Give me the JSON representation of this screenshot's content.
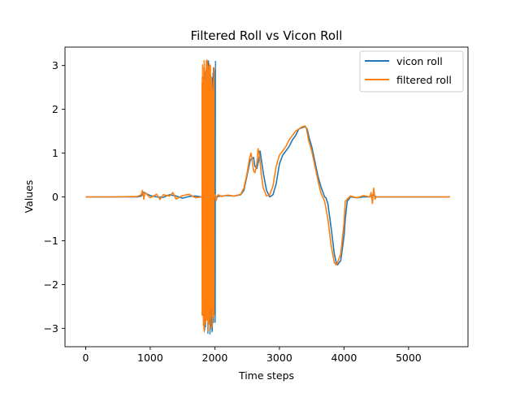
{
  "chart_data": {
    "type": "line",
    "title": "Filtered Roll vs Vicon Roll",
    "xlabel": "Time steps",
    "ylabel": "Values",
    "xlim": [
      -320,
      5920
    ],
    "ylim": [
      -3.42,
      3.42
    ],
    "xticks": [
      0,
      1000,
      2000,
      3000,
      4000,
      5000
    ],
    "yticks": [
      -3,
      -2,
      -1,
      0,
      1,
      2,
      3
    ],
    "xtick_labels": [
      "0",
      "1000",
      "2000",
      "3000",
      "4000",
      "5000"
    ],
    "ytick_labels": [
      "−3",
      "−2",
      "−1",
      "0",
      "1",
      "2",
      "3"
    ],
    "grid": false,
    "legend_position": "top-right",
    "series": [
      {
        "name": "vicon roll",
        "color": "#1f77b4",
        "x": [
          0,
          400,
          800,
          860,
          900,
          1000,
          1100,
          1200,
          1300,
          1400,
          1500,
          1600,
          1700,
          1800,
          1830,
          2000,
          2010,
          2050,
          2100,
          2200,
          2300,
          2400,
          2450,
          2500,
          2550,
          2600,
          2620,
          2650,
          2680,
          2700,
          2750,
          2800,
          2850,
          2900,
          2950,
          3000,
          3050,
          3100,
          3150,
          3200,
          3250,
          3300,
          3350,
          3400,
          3430,
          3460,
          3500,
          3550,
          3600,
          3650,
          3680,
          3700,
          3720,
          3750,
          3800,
          3850,
          3880,
          3900,
          3950,
          4000,
          4020,
          4050,
          4100,
          4200,
          4300,
          4400,
          4450,
          4500,
          4600,
          5000,
          5640
        ],
        "y": [
          0.0,
          0.0,
          0.0,
          0.02,
          0.1,
          0.03,
          0.0,
          -0.01,
          0.05,
          0.02,
          -0.03,
          0.01,
          0.02,
          0.0,
          0.0,
          0.0,
          0.0,
          0.01,
          0.02,
          0.03,
          0.02,
          0.05,
          0.15,
          0.5,
          0.85,
          0.9,
          0.7,
          0.65,
          0.85,
          1.05,
          0.55,
          0.15,
          0.0,
          0.05,
          0.3,
          0.75,
          0.95,
          1.05,
          1.15,
          1.3,
          1.4,
          1.55,
          1.58,
          1.6,
          1.55,
          1.35,
          1.15,
          0.8,
          0.45,
          0.2,
          0.08,
          0.0,
          -0.02,
          -0.15,
          -0.7,
          -1.3,
          -1.5,
          -1.55,
          -1.45,
          -0.9,
          -0.5,
          -0.1,
          0.0,
          -0.02,
          0.0,
          0.0,
          0.05,
          0.0,
          0.0,
          0.0,
          0.0
        ]
      },
      {
        "name": "filtered roll",
        "color": "#ff7f0e",
        "x": [
          0,
          400,
          800,
          860,
          880,
          900,
          920,
          1000,
          1100,
          1150,
          1200,
          1300,
          1350,
          1400,
          1500,
          1600,
          1700,
          1800,
          2000,
          2020,
          2050,
          2100,
          2200,
          2300,
          2400,
          2450,
          2500,
          2540,
          2560,
          2600,
          2620,
          2650,
          2670,
          2690,
          2720,
          2750,
          2800,
          2850,
          2900,
          2950,
          3000,
          3050,
          3100,
          3150,
          3200,
          3250,
          3300,
          3350,
          3400,
          3420,
          3450,
          3500,
          3550,
          3600,
          3640,
          3670,
          3700,
          3750,
          3800,
          3850,
          3880,
          3900,
          3950,
          4000,
          4020,
          4050,
          4100,
          4200,
          4300,
          4400,
          4420,
          4440,
          4460,
          4480,
          4500,
          4600,
          5000,
          5640
        ],
        "y": [
          0.0,
          0.0,
          0.01,
          0.05,
          0.15,
          -0.05,
          0.1,
          -0.02,
          0.06,
          -0.06,
          0.05,
          0.02,
          0.1,
          -0.05,
          0.03,
          0.06,
          -0.02,
          0.0,
          0.05,
          -0.08,
          0.05,
          0.01,
          0.04,
          0.02,
          0.06,
          0.2,
          0.55,
          0.9,
          1.0,
          0.6,
          0.55,
          0.75,
          1.1,
          0.95,
          0.5,
          0.2,
          0.02,
          0.05,
          0.25,
          0.7,
          0.95,
          1.05,
          1.15,
          1.3,
          1.4,
          1.5,
          1.55,
          1.6,
          1.62,
          1.55,
          1.3,
          1.05,
          0.7,
          0.35,
          0.1,
          0.0,
          -0.1,
          -0.5,
          -1.1,
          -1.5,
          -1.55,
          -1.5,
          -1.3,
          -0.6,
          -0.1,
          -0.05,
          0.02,
          -0.02,
          0.03,
          0.0,
          0.1,
          -0.15,
          0.2,
          -0.05,
          0.0,
          0.0,
          0.0,
          0.0
        ]
      }
    ],
    "noise_band": {
      "x_start": 1800,
      "x_end": 2000,
      "ymin": -3.14,
      "ymax": 3.14
    }
  }
}
